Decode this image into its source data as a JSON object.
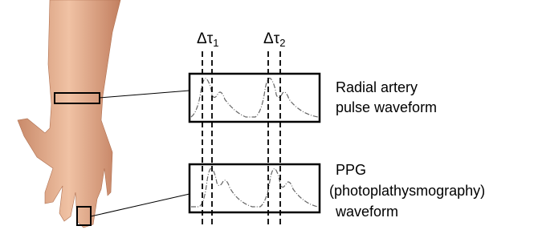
{
  "delay_labels": [
    {
      "symbol": "Δτ",
      "subscript": "1"
    },
    {
      "symbol": "Δτ",
      "subscript": "2"
    }
  ],
  "waveforms": [
    {
      "label_lines": [
        "Radial artery",
        "pulse waveform"
      ]
    },
    {
      "label_lines": [
        "PPG",
        "(photoplathysmography)",
        "waveform"
      ]
    }
  ]
}
